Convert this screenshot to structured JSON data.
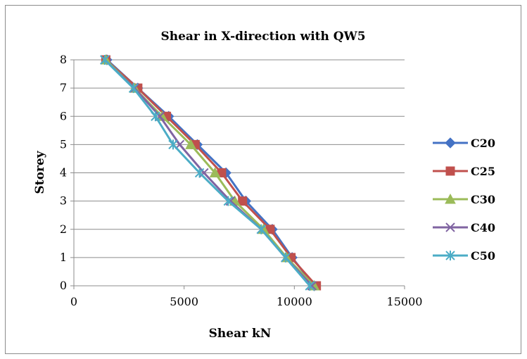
{
  "chart_data": {
    "type": "line",
    "title": "Shear in X-direction with QW5",
    "xlabel": "Shear kN",
    "ylabel": "Storey",
    "xlim": [
      0,
      15000
    ],
    "ylim": [
      0,
      8
    ],
    "xticks": [
      0,
      5000,
      10000,
      15000
    ],
    "yticks": [
      0,
      1,
      2,
      3,
      4,
      5,
      6,
      7,
      8
    ],
    "grid": "horizontal",
    "legend_position": "right",
    "series": [
      {
        "name": "C20",
        "color": "#4472C4",
        "marker": "diamond",
        "points": [
          [
            1500,
            8
          ],
          [
            2900,
            7
          ],
          [
            4300,
            6
          ],
          [
            5600,
            5
          ],
          [
            6900,
            4
          ],
          [
            7800,
            3
          ],
          [
            9000,
            2
          ],
          [
            9900,
            1
          ],
          [
            10900,
            0
          ]
        ]
      },
      {
        "name": "C25",
        "color": "#C0504D",
        "marker": "square",
        "points": [
          [
            1450,
            8
          ],
          [
            2900,
            7
          ],
          [
            4200,
            6
          ],
          [
            5500,
            5
          ],
          [
            6700,
            4
          ],
          [
            7650,
            3
          ],
          [
            8900,
            2
          ],
          [
            9850,
            1
          ],
          [
            11000,
            0
          ]
        ]
      },
      {
        "name": "C30",
        "color": "#9BBB59",
        "marker": "triangle",
        "points": [
          [
            1450,
            8
          ],
          [
            2750,
            7
          ],
          [
            4000,
            6
          ],
          [
            5300,
            5
          ],
          [
            6400,
            4
          ],
          [
            7300,
            3
          ],
          [
            8600,
            2
          ],
          [
            9650,
            1
          ],
          [
            10900,
            0
          ]
        ]
      },
      {
        "name": "C40",
        "color": "#8064A2",
        "marker": "x",
        "points": [
          [
            1400,
            8
          ],
          [
            2750,
            7
          ],
          [
            3900,
            6
          ],
          [
            4800,
            5
          ],
          [
            5900,
            4
          ],
          [
            7100,
            3
          ],
          [
            8500,
            2
          ],
          [
            9600,
            1
          ],
          [
            10800,
            0
          ]
        ]
      },
      {
        "name": "C50",
        "color": "#4BACC6",
        "marker": "star",
        "points": [
          [
            1400,
            8
          ],
          [
            2700,
            7
          ],
          [
            3700,
            6
          ],
          [
            4500,
            5
          ],
          [
            5700,
            4
          ],
          [
            7000,
            3
          ],
          [
            8500,
            2
          ],
          [
            9600,
            1
          ],
          [
            10700,
            0
          ]
        ]
      }
    ]
  }
}
